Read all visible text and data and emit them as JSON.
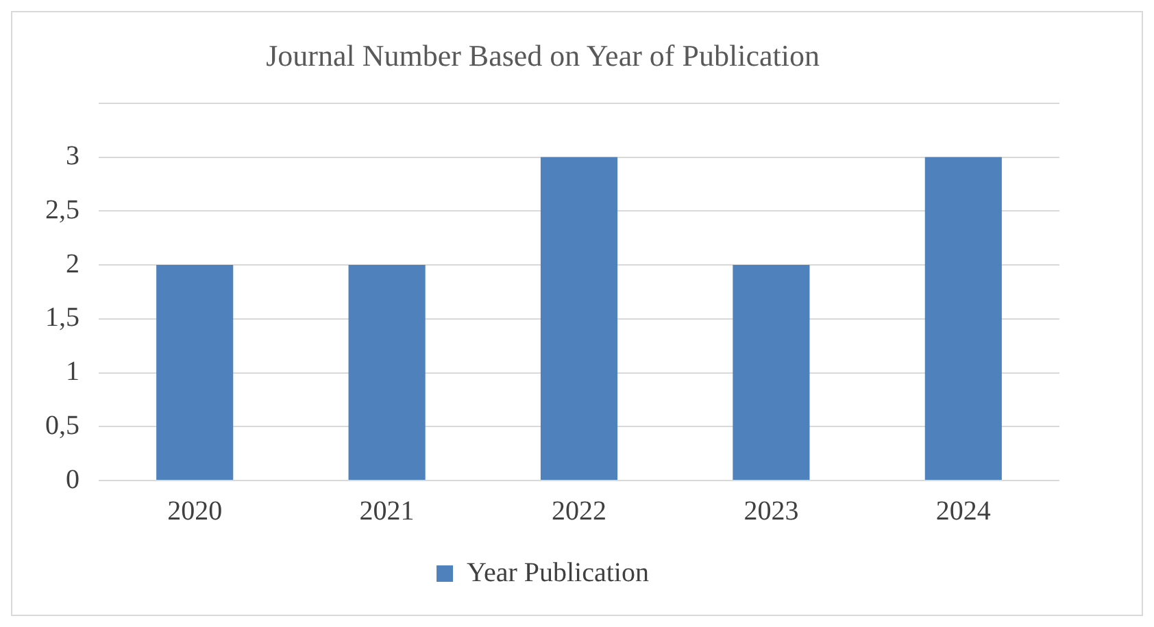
{
  "chart_data": {
    "type": "bar",
    "title": "Journal Number Based on Year of Publication",
    "categories": [
      "2020",
      "2021",
      "2022",
      "2023",
      "2024"
    ],
    "series": [
      {
        "name": "Year Publication",
        "color": "#4f81bd",
        "values": [
          2,
          2,
          3,
          2,
          3
        ]
      }
    ],
    "ylim": [
      0,
      3.5
    ],
    "yticks": [
      0,
      {
        "value": 0.5,
        "label": "0,5"
      },
      1,
      {
        "value": 1.5,
        "label": "1,5"
      },
      2,
      {
        "value": 2.5,
        "label": "2,5"
      },
      3,
      {
        "value": 3.5,
        "label": null
      }
    ],
    "grid": "y",
    "legend": "bottom"
  }
}
